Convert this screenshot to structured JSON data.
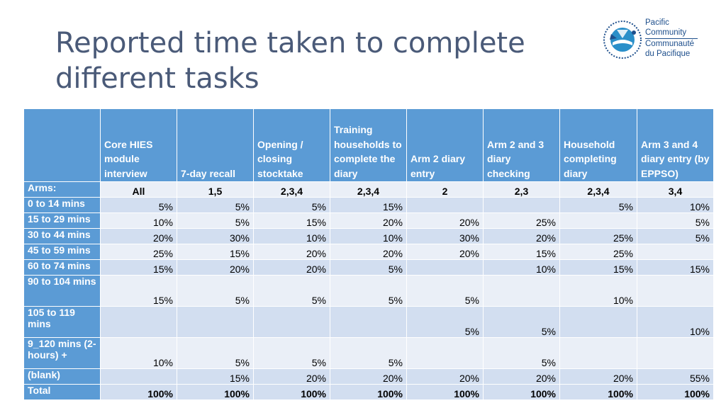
{
  "title": "Reported time taken to complete different tasks",
  "logo": {
    "name": "pacific-community-logo",
    "line1": "Pacific",
    "line2": "Community",
    "line3": "Communauté",
    "line4": "du Pacifique"
  },
  "table": {
    "columns": [
      "",
      "Core HIES module interview",
      "7-day recall",
      "Opening / closing stocktake",
      "Training households to complete the diary",
      "Arm 2 diary entry",
      "Arm 2 and 3 diary checking",
      "Household completing diary",
      "Arm 3 and 4 diary entry (by EPPSO)"
    ],
    "arms": {
      "label": "Arms:",
      "values": [
        "All",
        "1,5",
        "2,3,4",
        "2,3,4",
        "2",
        "2,3",
        "2,3,4",
        "3,4"
      ]
    },
    "rows": [
      {
        "label": "0 to 14 mins",
        "values": [
          "5%",
          "5%",
          "5%",
          "15%",
          "",
          "",
          "5%",
          "10%"
        ]
      },
      {
        "label": "15 to 29 mins",
        "values": [
          "10%",
          "5%",
          "15%",
          "20%",
          "20%",
          "25%",
          "",
          "5%"
        ]
      },
      {
        "label": "30 to 44 mins",
        "values": [
          "20%",
          "30%",
          "10%",
          "10%",
          "30%",
          "20%",
          "25%",
          "5%"
        ]
      },
      {
        "label": "45 to 59 mins",
        "values": [
          "25%",
          "15%",
          "20%",
          "20%",
          "20%",
          "15%",
          "25%",
          ""
        ]
      },
      {
        "label": "60 to 74 mins",
        "values": [
          "15%",
          "20%",
          "20%",
          "5%",
          "",
          "10%",
          "15%",
          "15%"
        ]
      },
      {
        "label": "90 to 104 mins",
        "values": [
          "15%",
          "5%",
          "5%",
          "5%",
          "5%",
          "",
          "10%",
          ""
        ]
      },
      {
        "label": "105 to 119 mins",
        "values": [
          "",
          "",
          "",
          "",
          "5%",
          "5%",
          "",
          "10%"
        ]
      },
      {
        "label": "9_120 mins (2-hours) +",
        "values": [
          "10%",
          "5%",
          "5%",
          "5%",
          "",
          "5%",
          "",
          ""
        ]
      },
      {
        "label": "(blank)",
        "values": [
          "",
          "15%",
          "20%",
          "20%",
          "20%",
          "20%",
          "20%",
          "55%"
        ]
      }
    ],
    "total": {
      "label": "Total",
      "values": [
        "100%",
        "100%",
        "100%",
        "100%",
        "100%",
        "100%",
        "100%",
        "100%"
      ]
    }
  }
}
